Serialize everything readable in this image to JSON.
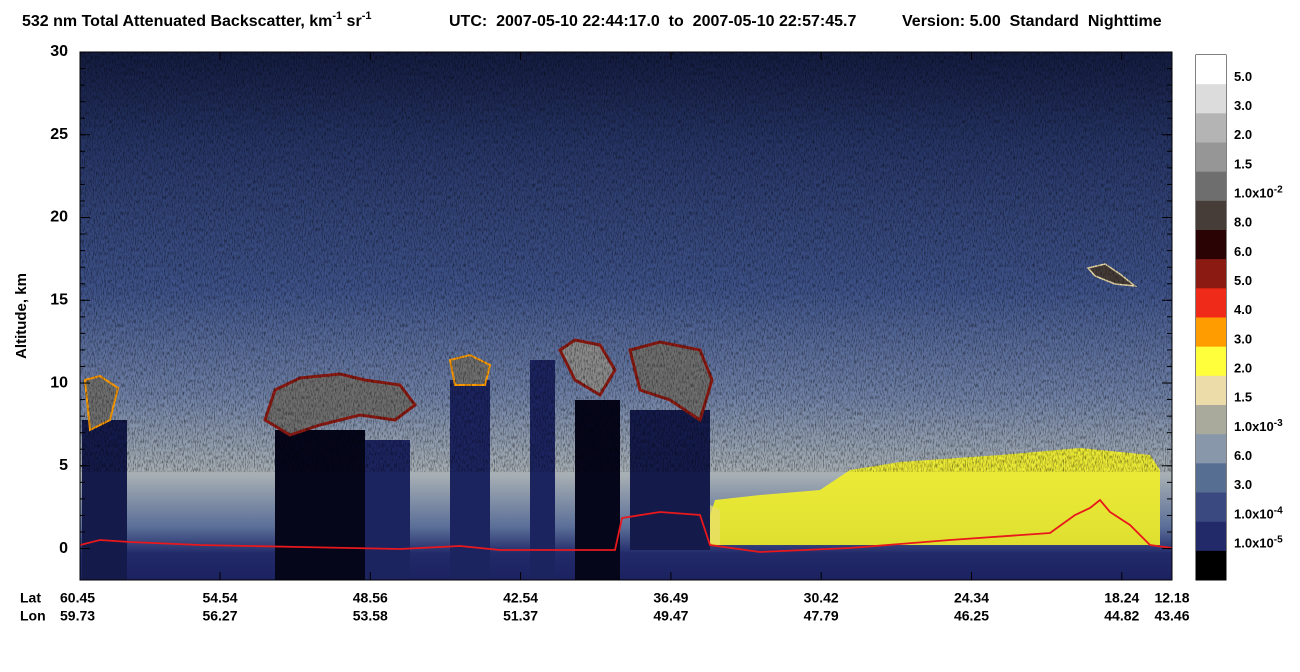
{
  "chart_data": {
    "type": "curtain",
    "title": [
      "532 nm Total Attenuated Backscatter, km",
      "-1",
      " sr",
      "-1"
    ],
    "time_range": "UTC:  2007-05-10 22:44:17.0  to  2007-05-10 22:57:45.7",
    "version": "Version: 5.00  Standard  Nighttime",
    "y_label": "Altitude, km",
    "ylim": [
      -1.9,
      30
    ],
    "yticks": [
      0,
      5,
      10,
      15,
      20,
      25,
      30
    ],
    "x_rows": [
      {
        "name": "Lat",
        "values": [
          "60.45",
          "54.54",
          "48.56",
          "42.54",
          "36.49",
          "30.42",
          "24.34",
          "18.24",
          "12.18"
        ]
      },
      {
        "name": "Lon",
        "values": [
          "59.73",
          "56.27",
          "53.58",
          "51.37",
          "49.47",
          "47.79",
          "46.25",
          "44.82",
          "43.46"
        ]
      }
    ],
    "colorbar": {
      "colors": [
        "#ffffff",
        "#dcdcdc",
        "#b4b4b4",
        "#969696",
        "#6e6e6e",
        "#463c38",
        "#2a0404",
        "#8b1a12",
        "#f02a18",
        "#ff9c00",
        "#ffff3c",
        "#ecdcaa",
        "#a9aa9c",
        "#8898aa",
        "#566e92",
        "#3a4a80",
        "#222a6a",
        "#000000"
      ],
      "labels": [
        {
          "mantissa": "5.0"
        },
        {
          "mantissa": "3.0"
        },
        {
          "mantissa": "2.0"
        },
        {
          "mantissa": "1.5"
        },
        {
          "mantissa": "1.0x10",
          "exponent": "-2"
        },
        {
          "mantissa": "8.0"
        },
        {
          "mantissa": "6.0"
        },
        {
          "mantissa": "5.0"
        },
        {
          "mantissa": "4.0"
        },
        {
          "mantissa": "3.0"
        },
        {
          "mantissa": "2.0"
        },
        {
          "mantissa": "1.5"
        },
        {
          "mantissa": "1.0x10",
          "exponent": "-3"
        },
        {
          "mantissa": "6.0"
        },
        {
          "mantissa": "3.0"
        },
        {
          "mantissa": "1.0x10",
          "exponent": "-4"
        },
        {
          "mantissa": "1.0x10",
          "exponent": "-5"
        }
      ]
    }
  }
}
